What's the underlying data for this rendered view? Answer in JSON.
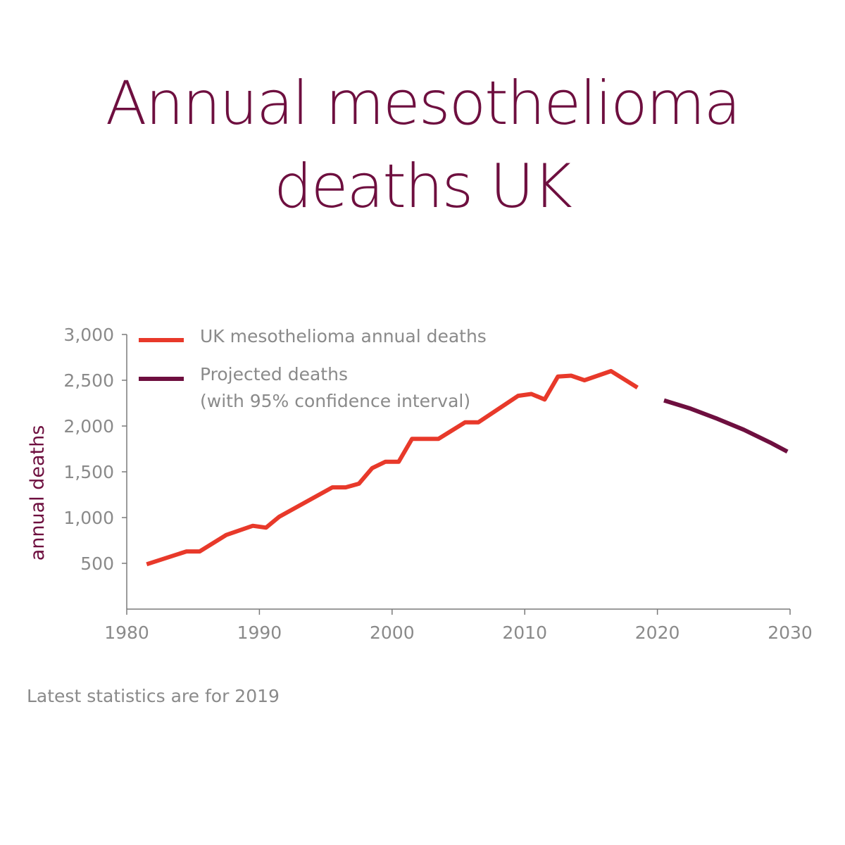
{
  "chart_data": {
    "type": "line",
    "title": [
      "Annual mesothelioma",
      "deaths UK"
    ],
    "ylabel": "annual deaths",
    "xlabel": "",
    "xlim": [
      1980,
      2030
    ],
    "ylim": [
      0,
      3000
    ],
    "x_ticks": [
      1980,
      1990,
      2000,
      2010,
      2020,
      2030
    ],
    "x_tick_labels": [
      "1980",
      "1990",
      "2000",
      "2010",
      "2020",
      "2030"
    ],
    "y_ticks": [
      500,
      1000,
      1500,
      2000,
      2500,
      3000
    ],
    "y_tick_labels": [
      "500",
      "1,000",
      "1,500",
      "2,000",
      "2,500",
      "3,000"
    ],
    "legend_position": "top-left",
    "series": [
      {
        "name": "UK mesothelioma annual deaths",
        "color": "#e8392a",
        "points": [
          [
            1981.5,
            490
          ],
          [
            1984.5,
            630
          ],
          [
            1985.5,
            630
          ],
          [
            1987.5,
            810
          ],
          [
            1989.5,
            910
          ],
          [
            1990.5,
            890
          ],
          [
            1991.5,
            1010
          ],
          [
            1995.5,
            1330
          ],
          [
            1996.5,
            1330
          ],
          [
            1997.5,
            1370
          ],
          [
            1998.5,
            1540
          ],
          [
            1999.5,
            1610
          ],
          [
            2000.5,
            1610
          ],
          [
            2001.5,
            1860
          ],
          [
            2003.5,
            1860
          ],
          [
            2005.5,
            2040
          ],
          [
            2006.5,
            2040
          ],
          [
            2009.5,
            2330
          ],
          [
            2010.5,
            2350
          ],
          [
            2011.5,
            2290
          ],
          [
            2012.5,
            2540
          ],
          [
            2013.5,
            2550
          ],
          [
            2014.5,
            2500
          ],
          [
            2016.5,
            2600
          ],
          [
            2018.5,
            2420
          ]
        ]
      },
      {
        "name": "Projected deaths",
        "name_line2": "(with 95% confidence interval)",
        "color": "#6e0f3f",
        "points": [
          [
            2020.5,
            2280
          ],
          [
            2022.5,
            2190
          ],
          [
            2024.5,
            2080
          ],
          [
            2026.5,
            1960
          ],
          [
            2028.5,
            1820
          ],
          [
            2029.8,
            1720
          ]
        ]
      }
    ],
    "footnote": "Latest statistics are for 2019"
  }
}
